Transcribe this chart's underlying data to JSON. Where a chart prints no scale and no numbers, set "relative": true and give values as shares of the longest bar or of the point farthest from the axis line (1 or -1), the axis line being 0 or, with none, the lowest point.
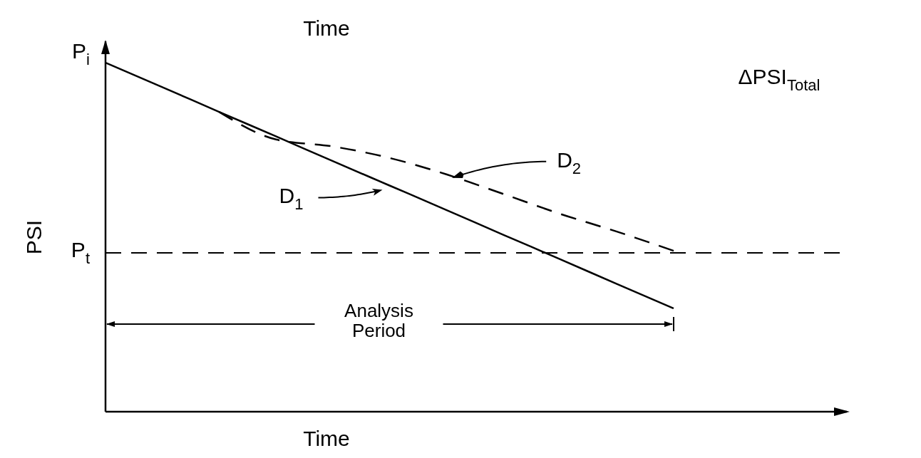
{
  "chart_data": {
    "type": "line",
    "title": "Time",
    "xlabel": "Time",
    "ylabel": "PSI",
    "relative": true,
    "tick_labels": false,
    "marker": "none",
    "categories": [
      null,
      null,
      null,
      null,
      null,
      null,
      null,
      null,
      null,
      null,
      null
    ],
    "series": [
      {
        "name": "D$_{1}$",
        "color": "#000000",
        "line_style": "solid",
        "values": [
          1.0,
          0.93,
          0.859,
          0.789,
          0.718,
          0.648,
          0.578,
          0.507,
          0.437,
          0.366,
          0.296
        ]
      },
      {
        "name": "D$_{2}$",
        "color": "#000000",
        "line_style": "dashed",
        "values": [
          null,
          null,
          0.859,
          0.78,
          0.76,
          0.727,
          0.68,
          0.624,
          0.567,
          0.516,
          0.461
        ]
      }
    ],
    "ref_lines": [
      {
        "axis": "y",
        "value": 0.455,
        "label": "P$_{t}$",
        "line_style": "dashed",
        "color": "#000000"
      }
    ],
    "annotations": [
      "P$_{i}$",
      "Analysis Period",
      "ΔPSI$_{Total}$"
    ]
  }
}
